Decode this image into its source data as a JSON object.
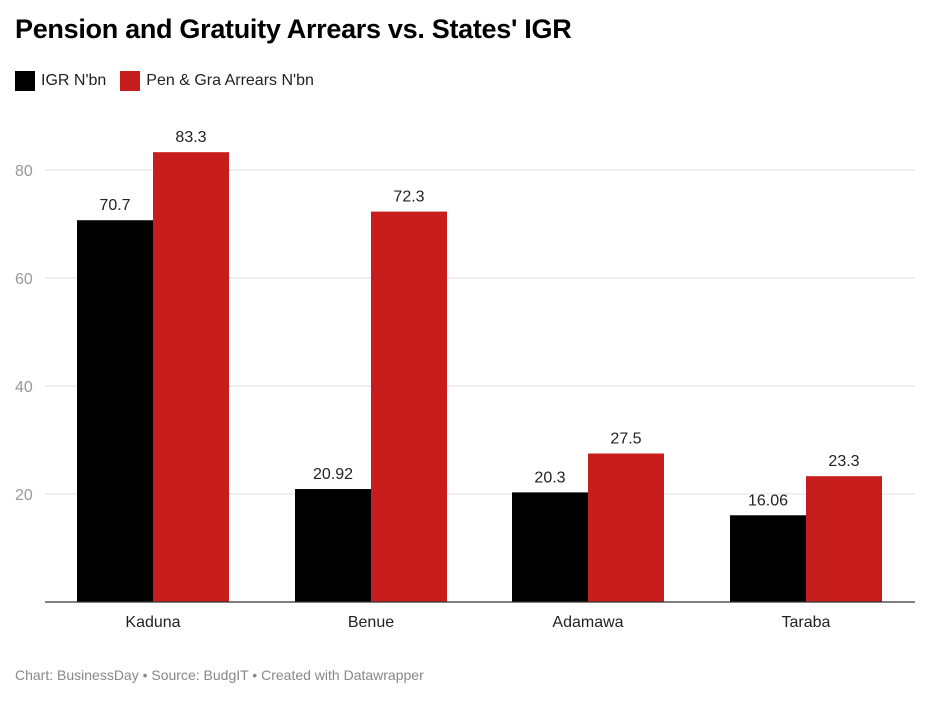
{
  "chart_data": {
    "type": "bar",
    "title": "Pension and Gratuity Arrears vs. States' IGR",
    "categories": [
      "Kaduna",
      "Benue",
      "Adamawa",
      "Taraba"
    ],
    "series": [
      {
        "name": "IGR N'bn",
        "color": "#000000",
        "values": [
          70.7,
          20.92,
          20.3,
          16.06
        ],
        "labels": [
          "70.7",
          "20.92",
          "20.3",
          "16.06"
        ]
      },
      {
        "name": "Pen & Gra Arrears N'bn",
        "color": "#c71e1d",
        "values": [
          83.3,
          72.3,
          27.5,
          23.3
        ],
        "labels": [
          "83.3",
          "72.3",
          "27.5",
          "23.3"
        ]
      }
    ],
    "yticks": [
      "20",
      "40",
      "60",
      "80"
    ],
    "ylim": [
      0,
      88
    ],
    "grid": true,
    "legend": "top-left",
    "xlabel": "",
    "ylabel": ""
  },
  "footer": "Chart: BusinessDay • Source: BudgIT • Created with Datawrapper"
}
